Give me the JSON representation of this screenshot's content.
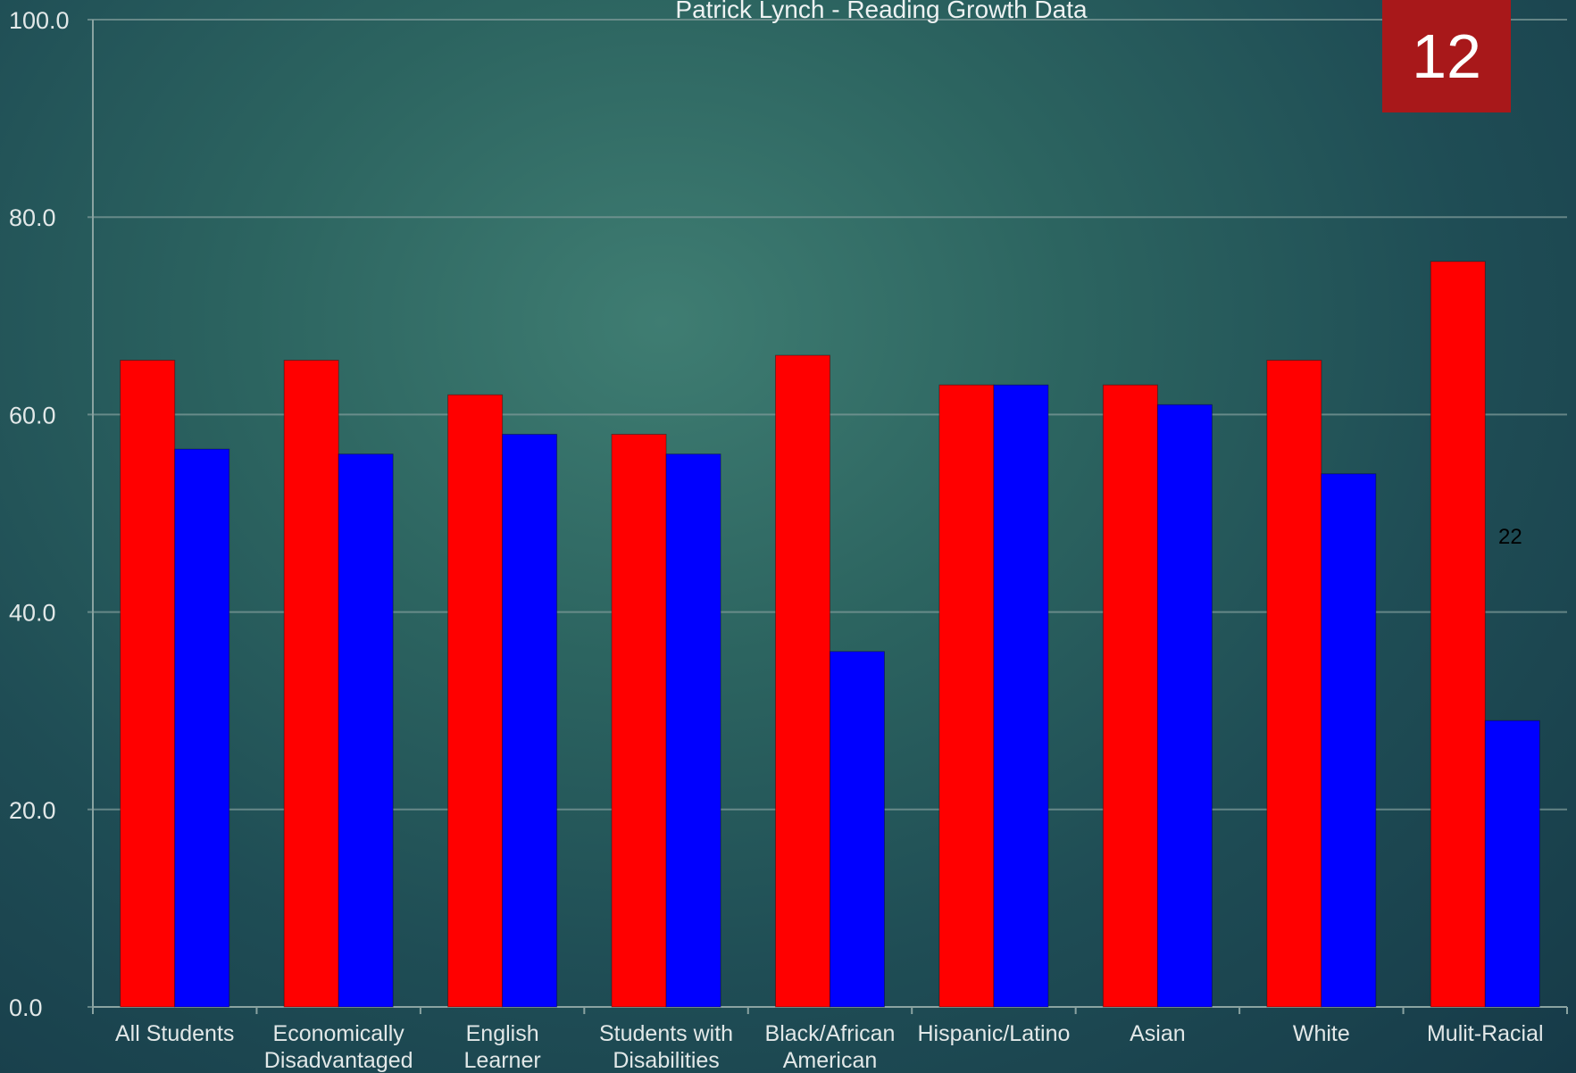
{
  "chart_data": {
    "type": "bar",
    "title": "Patrick Lynch - Reading Growth Data",
    "categories": [
      [
        "All Students"
      ],
      [
        "Economically",
        "Disadvantaged"
      ],
      [
        "English",
        "Learner"
      ],
      [
        "Students with",
        "Disabilities"
      ],
      [
        "Black/African",
        "American"
      ],
      [
        "Hispanic/Latino"
      ],
      [
        "Asian"
      ],
      [
        "White"
      ],
      [
        "Mulit-Racial"
      ]
    ],
    "series": [
      {
        "color": "#ff0000",
        "values": [
          65.5,
          65.5,
          62.0,
          58.0,
          66.0,
          63.0,
          63.0,
          65.5,
          75.5
        ]
      },
      {
        "color": "#0000ff",
        "values": [
          56.5,
          56.0,
          58.0,
          56.0,
          36.0,
          63.0,
          61.0,
          54.0,
          29.0
        ]
      }
    ],
    "ylim": [
      0,
      100
    ],
    "yticks": [
      "0.0",
      "20.0",
      "40.0",
      "60.0",
      "80.0",
      "100.0"
    ],
    "grid": true,
    "legend": "none",
    "xlabel": "",
    "ylabel": ""
  },
  "badge": {
    "number": "12"
  },
  "note": "22"
}
